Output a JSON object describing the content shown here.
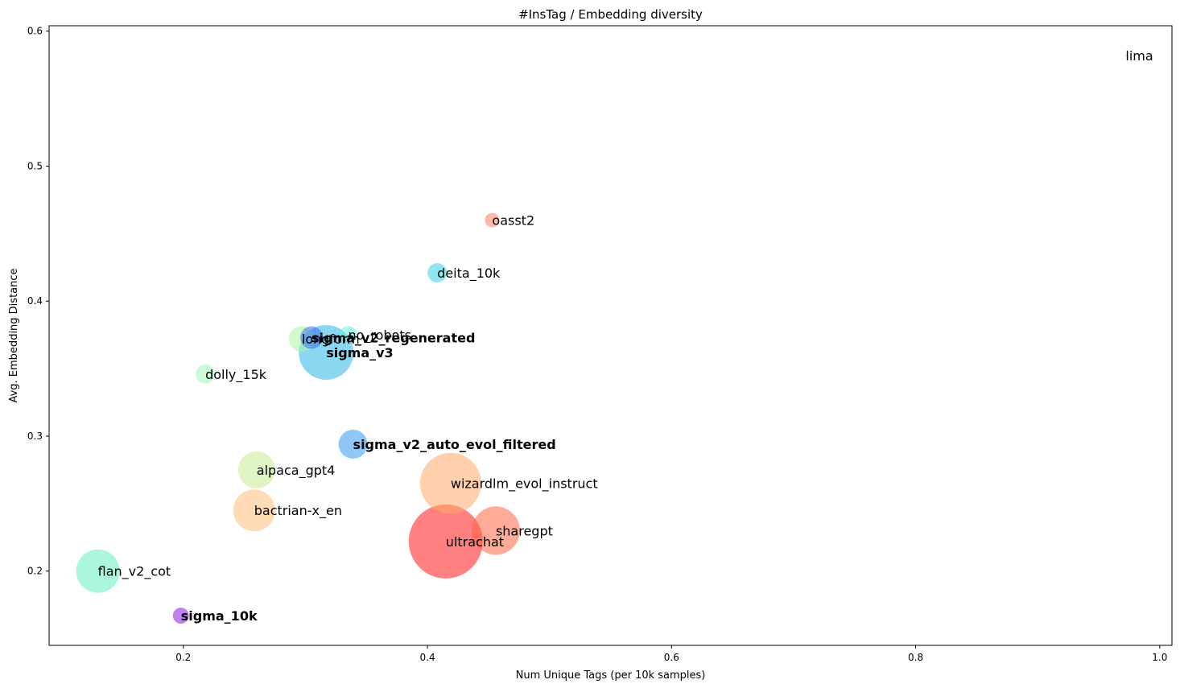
{
  "chart_data": {
    "type": "scatter",
    "title": "#InsTag / Embedding diversity",
    "xlabel": "Num Unique Tags (per 10k samples)",
    "ylabel": "Avg. Embedding Distance",
    "xlim": [
      0.09,
      1.01
    ],
    "ylim": [
      0.145,
      0.604
    ],
    "xticks": [
      "0.2",
      "0.4",
      "0.6",
      "0.8",
      "1.0"
    ],
    "yticks": [
      "0.2",
      "0.3",
      "0.4",
      "0.5",
      "0.6"
    ],
    "xtick_values": [
      0.2,
      0.4,
      0.6,
      0.8,
      1.0
    ],
    "ytick_values": [
      0.2,
      0.3,
      0.4,
      0.5,
      0.6
    ],
    "grid": false,
    "points": [
      {
        "label": "lima",
        "x": 0.972,
        "y": 0.582,
        "size": 1,
        "color": "#d4c27a",
        "bold": false
      },
      {
        "label": "oasst2",
        "x": 0.453,
        "y": 0.46,
        "size": 9,
        "color": "#ff8066",
        "bold": false
      },
      {
        "label": "deita_10k",
        "x": 0.408,
        "y": 0.421,
        "size": 12,
        "color": "#33d1e6",
        "bold": false
      },
      {
        "label": "no_robots",
        "x": 0.335,
        "y": 0.375,
        "size": 11,
        "color": "#66f2dd",
        "bold": false
      },
      {
        "label": "longform",
        "x": 0.297,
        "y": 0.372,
        "size": 16,
        "color": "#a8f5a0",
        "bold": false
      },
      {
        "label": "sigma_v2_regenerated",
        "x": 0.305,
        "y": 0.373,
        "size": 14,
        "color": "#3d6df0",
        "bold": true
      },
      {
        "label": "sigma_v3",
        "x": 0.317,
        "y": 0.362,
        "size": 34,
        "color": "#29b6e8",
        "bold": true
      },
      {
        "label": "dolly_15k",
        "x": 0.218,
        "y": 0.346,
        "size": 12,
        "color": "#9ef5b8",
        "bold": false
      },
      {
        "label": "sigma_v2_auto_evol_filtered",
        "x": 0.339,
        "y": 0.294,
        "size": 18,
        "color": "#3399ee",
        "bold": true
      },
      {
        "label": "alpaca_gpt4",
        "x": 0.26,
        "y": 0.275,
        "size": 23,
        "color": "#c4ec92",
        "bold": false
      },
      {
        "label": "wizardlm_evol_instruct",
        "x": 0.419,
        "y": 0.265,
        "size": 38,
        "color": "#ffaa66",
        "bold": false
      },
      {
        "label": "bactrian-x_en",
        "x": 0.258,
        "y": 0.245,
        "size": 26,
        "color": "#ffbf7a",
        "bold": false
      },
      {
        "label": "sharegpt",
        "x": 0.456,
        "y": 0.23,
        "size": 30,
        "color": "#ff6644",
        "bold": false
      },
      {
        "label": "ultrachat",
        "x": 0.415,
        "y": 0.222,
        "size": 46,
        "color": "#ff1a1a",
        "bold": false
      },
      {
        "label": "flan_v2_cot",
        "x": 0.13,
        "y": 0.2,
        "size": 27,
        "color": "#66f0c2",
        "bold": false
      },
      {
        "label": "sigma_10k",
        "x": 0.198,
        "y": 0.167,
        "size": 10,
        "color": "#8a1ae6",
        "bold": true
      }
    ]
  }
}
